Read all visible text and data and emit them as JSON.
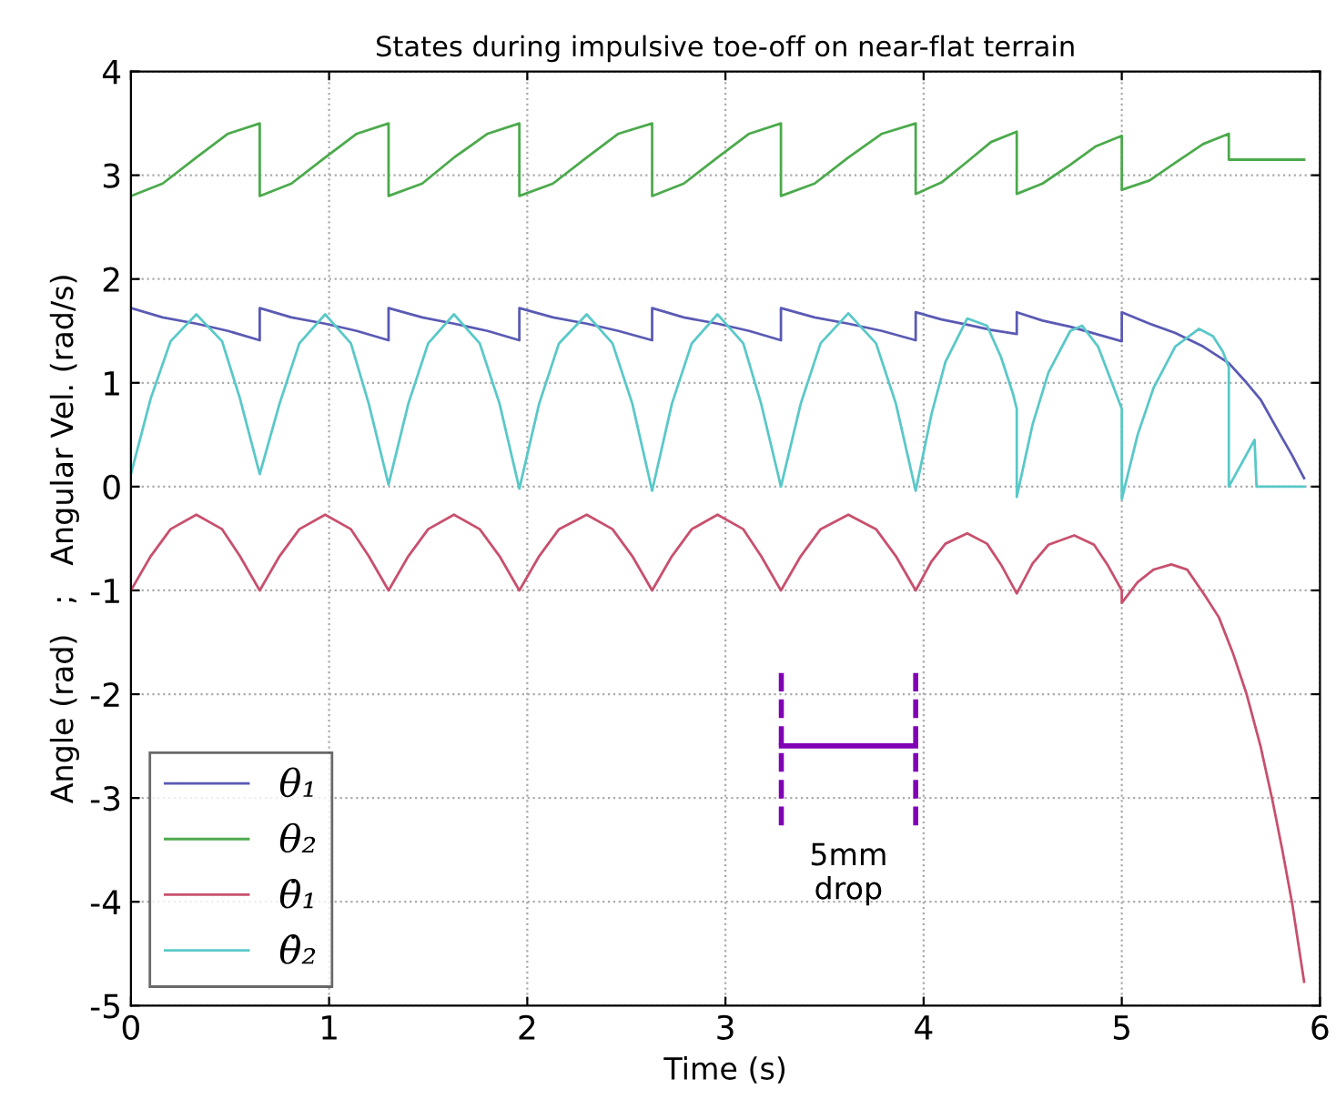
{
  "chart_data": {
    "type": "line",
    "title": "States during impulsive toe-off on near-flat terrain",
    "xlabel": "Time (s)",
    "ylabel": "Angle (rad)   ;   Angular Vel. (rad/s)",
    "xlim": [
      0,
      6
    ],
    "ylim": [
      -5,
      4
    ],
    "xticks": [
      0,
      1,
      2,
      3,
      4,
      5,
      6
    ],
    "yticks": [
      -5,
      -4,
      -3,
      -2,
      -1,
      0,
      1,
      2,
      3,
      4
    ],
    "grid": true,
    "legend": "bottom left",
    "line_style": "solid",
    "series": [
      {
        "name": "θ₁",
        "color": "#5a5ab4",
        "x": [
          0,
          0.16,
          0.33,
          0.49,
          0.65,
          0.65,
          0.81,
          0.98,
          1.14,
          1.3,
          1.3,
          1.47,
          1.63,
          1.8,
          1.96,
          1.96,
          2.13,
          2.3,
          2.46,
          2.63,
          2.63,
          2.79,
          2.96,
          3.12,
          3.28,
          3.28,
          3.45,
          3.62,
          3.79,
          3.96,
          3.96,
          4.09,
          4.22,
          4.34,
          4.47,
          4.47,
          4.6,
          4.74,
          4.87,
          5.0,
          5.0,
          5.14,
          5.27,
          5.41,
          5.54,
          5.63,
          5.7,
          5.8,
          5.86,
          5.92
        ],
        "values": [
          1.72,
          1.63,
          1.57,
          1.5,
          1.41,
          1.72,
          1.63,
          1.57,
          1.5,
          1.41,
          1.72,
          1.63,
          1.57,
          1.5,
          1.41,
          1.72,
          1.63,
          1.57,
          1.5,
          1.41,
          1.72,
          1.63,
          1.57,
          1.5,
          1.41,
          1.72,
          1.63,
          1.57,
          1.5,
          1.41,
          1.68,
          1.61,
          1.56,
          1.51,
          1.47,
          1.68,
          1.6,
          1.54,
          1.47,
          1.4,
          1.68,
          1.57,
          1.48,
          1.35,
          1.19,
          1.0,
          0.84,
          0.5,
          0.3,
          0.08
        ]
      },
      {
        "name": "θ₂",
        "color": "#4caa4c",
        "x": [
          0,
          0.16,
          0.33,
          0.49,
          0.65,
          0.65,
          0.81,
          0.98,
          1.14,
          1.3,
          1.3,
          1.47,
          1.63,
          1.8,
          1.96,
          1.96,
          2.13,
          2.3,
          2.46,
          2.63,
          2.63,
          2.79,
          2.96,
          3.12,
          3.28,
          3.28,
          3.45,
          3.62,
          3.79,
          3.96,
          3.96,
          4.09,
          4.22,
          4.34,
          4.47,
          4.47,
          4.6,
          4.74,
          4.87,
          5.0,
          5.0,
          5.14,
          5.27,
          5.41,
          5.54,
          5.54,
          5.92
        ],
        "values": [
          2.8,
          2.92,
          3.17,
          3.4,
          3.5,
          2.8,
          2.92,
          3.17,
          3.4,
          3.5,
          2.8,
          2.92,
          3.17,
          3.4,
          3.5,
          2.8,
          2.92,
          3.17,
          3.4,
          3.5,
          2.8,
          2.92,
          3.17,
          3.4,
          3.5,
          2.8,
          2.92,
          3.17,
          3.4,
          3.5,
          2.82,
          2.93,
          3.13,
          3.32,
          3.42,
          2.82,
          2.92,
          3.1,
          3.28,
          3.38,
          2.86,
          2.95,
          3.12,
          3.3,
          3.4,
          3.15,
          3.15
        ]
      },
      {
        "name": "θ̇₁",
        "color": "#c8506e",
        "x": [
          0,
          0.1,
          0.2,
          0.33,
          0.46,
          0.55,
          0.65,
          0.75,
          0.85,
          0.98,
          1.11,
          1.2,
          1.3,
          1.4,
          1.5,
          1.63,
          1.76,
          1.86,
          1.96,
          2.06,
          2.16,
          2.3,
          2.43,
          2.53,
          2.63,
          2.73,
          2.83,
          2.96,
          3.09,
          3.18,
          3.28,
          3.38,
          3.48,
          3.62,
          3.76,
          3.86,
          3.96,
          4.04,
          4.11,
          4.22,
          4.32,
          4.39,
          4.47,
          4.55,
          4.63,
          4.76,
          4.86,
          4.93,
          5.0,
          5.0,
          5.08,
          5.16,
          5.25,
          5.33,
          5.42,
          5.49,
          5.56,
          5.63,
          5.7,
          5.76,
          5.81,
          5.86,
          5.92
        ],
        "values": [
          -1.0,
          -0.67,
          -0.41,
          -0.27,
          -0.41,
          -0.67,
          -1.0,
          -0.67,
          -0.41,
          -0.27,
          -0.41,
          -0.67,
          -1.0,
          -0.67,
          -0.41,
          -0.27,
          -0.41,
          -0.67,
          -1.0,
          -0.67,
          -0.41,
          -0.27,
          -0.41,
          -0.67,
          -1.0,
          -0.67,
          -0.41,
          -0.27,
          -0.41,
          -0.67,
          -1.0,
          -0.67,
          -0.41,
          -0.27,
          -0.41,
          -0.67,
          -1.0,
          -0.72,
          -0.55,
          -0.45,
          -0.55,
          -0.75,
          -1.03,
          -0.74,
          -0.56,
          -0.47,
          -0.56,
          -0.76,
          -1.0,
          -1.12,
          -0.92,
          -0.8,
          -0.75,
          -0.8,
          -1.05,
          -1.26,
          -1.6,
          -2.0,
          -2.5,
          -3.02,
          -3.5,
          -4.02,
          -4.77
        ]
      },
      {
        "name": "θ̇₂",
        "color": "#5ac8c8",
        "x": [
          0,
          0.1,
          0.2,
          0.33,
          0.46,
          0.55,
          0.65,
          0.75,
          0.85,
          0.98,
          1.11,
          1.2,
          1.3,
          1.4,
          1.5,
          1.63,
          1.76,
          1.86,
          1.96,
          2.06,
          2.16,
          2.3,
          2.43,
          2.53,
          2.63,
          2.73,
          2.83,
          2.96,
          3.09,
          3.18,
          3.28,
          3.38,
          3.48,
          3.62,
          3.76,
          3.86,
          3.96,
          4.04,
          4.11,
          4.22,
          4.32,
          4.39,
          4.45,
          4.47,
          4.47,
          4.55,
          4.63,
          4.74,
          4.8,
          4.88,
          4.95,
          5.0,
          5.0,
          5.08,
          5.16,
          5.27,
          5.39,
          5.46,
          5.51,
          5.54,
          5.54,
          5.67,
          5.68,
          5.92
        ],
        "values": [
          0.12,
          0.85,
          1.4,
          1.66,
          1.4,
          0.85,
          0.12,
          0.8,
          1.38,
          1.66,
          1.38,
          0.8,
          0.02,
          0.8,
          1.38,
          1.66,
          1.38,
          0.8,
          -0.02,
          0.8,
          1.38,
          1.66,
          1.38,
          0.8,
          -0.04,
          0.8,
          1.38,
          1.66,
          1.38,
          0.8,
          0.0,
          0.8,
          1.38,
          1.67,
          1.38,
          0.8,
          -0.04,
          0.7,
          1.2,
          1.62,
          1.55,
          1.25,
          0.9,
          0.75,
          -0.1,
          0.6,
          1.1,
          1.5,
          1.55,
          1.35,
          1.0,
          0.75,
          -0.12,
          0.5,
          0.95,
          1.35,
          1.52,
          1.45,
          1.3,
          1.15,
          0.0,
          0.45,
          0.0,
          0.0
        ]
      }
    ],
    "annotations": [
      "5mm\ndrop"
    ]
  }
}
